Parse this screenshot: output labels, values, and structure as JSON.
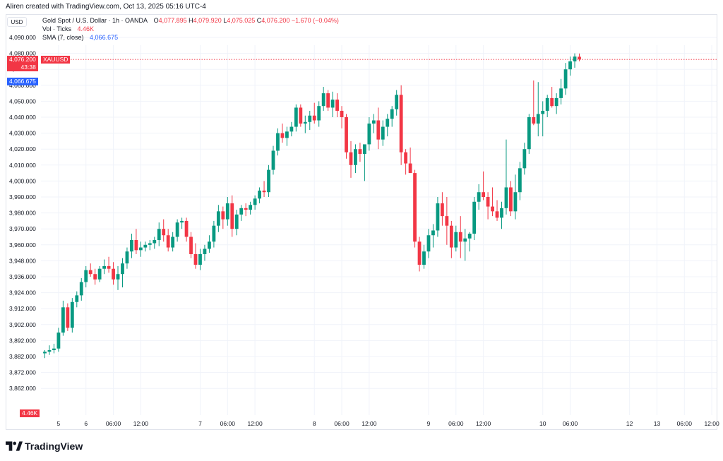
{
  "caption": "Aliren created with TradingView.com, Oct 13, 2025 05:16 UTC-4",
  "currency_button": "USD",
  "legend": {
    "symbol": "Gold Spot / U.S. Dollar · 1h · OANDA",
    "o_label": "O",
    "o_value": "4,077.895",
    "h_label": "H",
    "h_value": "4,079.920",
    "l_label": "L",
    "l_value": "4,075.025",
    "c_label": "C",
    "c_value": "4,076.200",
    "change": "−1.670 (−0.04%)",
    "vol_label": "Vol · Ticks",
    "vol_value": "4.46K",
    "sma_label": "SMA (7, close)",
    "sma_value": "4,066.675"
  },
  "price_tag": {
    "value": "4,076.200",
    "countdown": "43:38",
    "symbol": "XAUUSD"
  },
  "sma_tag": "4,066.675",
  "vol_tag": "4.46K",
  "brand": "TradingView",
  "colors": {
    "up": "#089981",
    "down": "#f23645",
    "sma": "#2962ff",
    "grid": "#f0f3fa",
    "text": "#131722"
  },
  "chart_data": {
    "type": "candlestick",
    "title": "Gold Spot / U.S. Dollar · 1h · OANDA",
    "y_ticks": [
      "4,090.000",
      "4,080.000",
      "4,070.000",
      "4,060.000",
      "4,050.000",
      "4,040.000",
      "4,030.000",
      "4,020.000",
      "4,010.000",
      "4,000.000",
      "3,990.000",
      "3,980.000",
      "3,970.000",
      "3,960.000",
      "3,948.000",
      "3,936.000",
      "3,924.000",
      "3,912.000",
      "3,902.000",
      "3,892.000",
      "3,882.000",
      "3,872.000",
      "3,862.000"
    ],
    "x_ticks": [
      "5",
      "6",
      "06:00",
      "12:00",
      "7",
      "06:00",
      "12:00",
      "8",
      "06:00",
      "12:00",
      "9",
      "06:00",
      "12:00",
      "10",
      "06:00",
      "12",
      "13",
      "06:00",
      "12:00"
    ],
    "x_tick_bar_index": [
      3,
      9,
      15,
      21,
      34,
      40,
      46,
      59,
      65,
      71,
      84,
      90,
      96,
      109,
      115,
      128,
      134,
      140,
      146
    ],
    "last_close": 4076.2,
    "candles": [
      [
        3884,
        3886,
        3881,
        3885
      ],
      [
        3885,
        3889,
        3883,
        3886
      ],
      [
        3886,
        3890,
        3884,
        3887
      ],
      [
        3887,
        3900,
        3885,
        3897
      ],
      [
        3897,
        3918,
        3895,
        3913
      ],
      [
        3913,
        3916,
        3898,
        3900
      ],
      [
        3900,
        3920,
        3897,
        3917
      ],
      [
        3917,
        3925,
        3913,
        3922
      ],
      [
        3922,
        3935,
        3918,
        3932
      ],
      [
        3932,
        3944,
        3928,
        3941
      ],
      [
        3941,
        3946,
        3936,
        3938
      ],
      [
        3938,
        3942,
        3930,
        3934
      ],
      [
        3934,
        3944,
        3932,
        3942
      ],
      [
        3942,
        3949,
        3938,
        3944
      ],
      [
        3944,
        3951,
        3939,
        3942
      ],
      [
        3942,
        3947,
        3930,
        3934
      ],
      [
        3934,
        3944,
        3926,
        3938
      ],
      [
        3938,
        3950,
        3928,
        3946
      ],
      [
        3946,
        3958,
        3942,
        3955
      ],
      [
        3955,
        3967,
        3950,
        3963
      ],
      [
        3963,
        3970,
        3953,
        3956
      ],
      [
        3956,
        3962,
        3951,
        3958
      ],
      [
        3958,
        3962,
        3955,
        3960
      ],
      [
        3960,
        3963,
        3956,
        3961
      ],
      [
        3961,
        3965,
        3957,
        3963
      ],
      [
        3963,
        3974,
        3959,
        3970
      ],
      [
        3970,
        3976,
        3962,
        3966
      ],
      [
        3966,
        3970,
        3955,
        3958
      ],
      [
        3958,
        3968,
        3955,
        3965
      ],
      [
        3965,
        3976,
        3962,
        3974
      ],
      [
        3974,
        3977,
        3970,
        3975
      ],
      [
        3975,
        3977,
        3962,
        3965
      ],
      [
        3965,
        3968,
        3950,
        3953
      ],
      [
        3953,
        3961,
        3942,
        3945
      ],
      [
        3945,
        3957,
        3941,
        3953
      ],
      [
        3953,
        3960,
        3948,
        3957
      ],
      [
        3957,
        3966,
        3954,
        3962
      ],
      [
        3962,
        3975,
        3958,
        3972
      ],
      [
        3972,
        3985,
        3968,
        3981
      ],
      [
        3981,
        3984,
        3970,
        3976
      ],
      [
        3976,
        3990,
        3972,
        3986
      ],
      [
        3986,
        3991,
        3965,
        3970
      ],
      [
        3970,
        3982,
        3966,
        3979
      ],
      [
        3979,
        3985,
        3975,
        3983
      ],
      [
        3983,
        3986,
        3978,
        3982
      ],
      [
        3982,
        3987,
        3979,
        3985
      ],
      [
        3985,
        3991,
        3982,
        3989
      ],
      [
        3989,
        3996,
        3986,
        3994
      ],
      [
        3994,
        4000,
        3990,
        3993
      ],
      [
        3993,
        4010,
        3990,
        4007
      ],
      [
        4007,
        4022,
        4004,
        4019
      ],
      [
        4019,
        4033,
        4016,
        4030
      ],
      [
        4030,
        4036,
        4024,
        4027
      ],
      [
        4027,
        4034,
        4022,
        4031
      ],
      [
        4031,
        4037,
        4028,
        4034
      ],
      [
        4034,
        4048,
        4031,
        4046
      ],
      [
        4046,
        4048,
        4034,
        4036
      ],
      [
        4036,
        4041,
        4030,
        4037
      ],
      [
        4037,
        4044,
        4032,
        4041
      ],
      [
        4041,
        4049,
        4036,
        4038
      ],
      [
        4038,
        4050,
        4034,
        4047
      ],
      [
        4047,
        4059,
        4044,
        4055
      ],
      [
        4055,
        4057,
        4044,
        4046
      ],
      [
        4046,
        4056,
        4040,
        4051
      ],
      [
        4051,
        4055,
        4040,
        4044
      ],
      [
        4044,
        4047,
        4033,
        4040
      ],
      [
        4040,
        4042,
        4014,
        4018
      ],
      [
        4018,
        4025,
        4002,
        4010
      ],
      [
        4010,
        4023,
        4005,
        4020
      ],
      [
        4020,
        4024,
        4012,
        4017
      ],
      [
        4017,
        4022,
        4000,
        4023
      ],
      [
        4023,
        4040,
        4019,
        4036
      ],
      [
        4036,
        4042,
        4030,
        4038
      ],
      [
        4038,
        4046,
        4020,
        4026
      ],
      [
        4026,
        4038,
        4022,
        4034
      ],
      [
        4034,
        4042,
        4028,
        4039
      ],
      [
        4039,
        4047,
        4034,
        4045
      ],
      [
        4045,
        4057,
        4041,
        4054
      ],
      [
        4054,
        4060,
        4010,
        4018
      ],
      [
        4018,
        4020,
        4004,
        4011
      ],
      [
        4011,
        4021,
        4006,
        4005
      ],
      [
        4005,
        4007,
        3958,
        3962
      ],
      [
        3962,
        3965,
        3940,
        3945
      ],
      [
        3945,
        3960,
        3942,
        3955
      ],
      [
        3955,
        3970,
        3950,
        3966
      ],
      [
        3966,
        3973,
        3958,
        3969
      ],
      [
        3969,
        3990,
        3965,
        3986
      ],
      [
        3986,
        3993,
        3972,
        3978
      ],
      [
        3978,
        3990,
        3960,
        3972
      ],
      [
        3972,
        3975,
        3950,
        3958
      ],
      [
        3958,
        3972,
        3955,
        3968
      ],
      [
        3968,
        3978,
        3950,
        3962
      ],
      [
        3962,
        3970,
        3948,
        3964
      ],
      [
        3964,
        3968,
        3955,
        3967
      ],
      [
        3967,
        3990,
        3963,
        3987
      ],
      [
        3987,
        3998,
        3982,
        3993
      ],
      [
        3993,
        4006,
        3988,
        3990
      ],
      [
        3990,
        3993,
        3976,
        3984
      ],
      [
        3984,
        3996,
        3978,
        3981
      ],
      [
        3981,
        3988,
        3975,
        3977
      ],
      [
        3977,
        3987,
        3970,
        3983
      ],
      [
        3983,
        4026,
        3979,
        3996
      ],
      [
        3996,
        4000,
        3978,
        3981
      ],
      [
        3981,
        4004,
        3976,
        3993
      ],
      [
        3993,
        4012,
        3988,
        4008
      ],
      [
        4008,
        4024,
        4004,
        4020
      ],
      [
        4020,
        4042,
        4017,
        4040
      ],
      [
        4040,
        4063,
        4035,
        4036
      ],
      [
        4036,
        4062,
        4028,
        4042
      ],
      [
        4042,
        4050,
        4028,
        4044
      ],
      [
        4044,
        4054,
        4040,
        4052
      ],
      [
        4052,
        4059,
        4046,
        4047
      ],
      [
        4047,
        4055,
        4042,
        4052
      ],
      [
        4052,
        4064,
        4048,
        4058
      ],
      [
        4058,
        4074,
        4054,
        4070
      ],
      [
        4070,
        4078,
        4066,
        4075
      ],
      [
        4075,
        4080,
        4071,
        4078
      ],
      [
        4077.895,
        4079.92,
        4075.025,
        4076.2
      ]
    ]
  }
}
